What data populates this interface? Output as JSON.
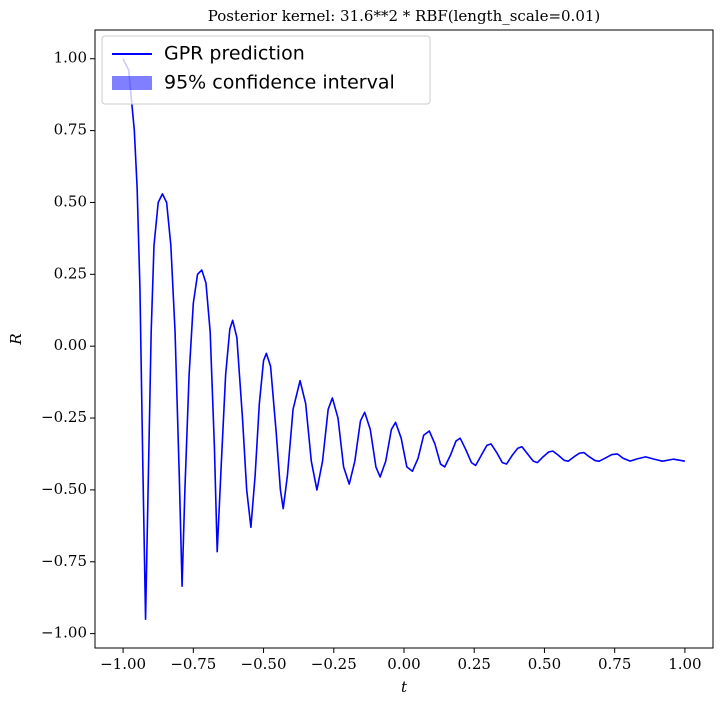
{
  "chart_data": {
    "type": "line",
    "title": "Posterior kernel: 31.6**2 * RBF(length_scale=0.01)",
    "xlabel": "t",
    "ylabel": "R",
    "xlim": [
      -1.1,
      1.1
    ],
    "ylim": [
      -1.05,
      1.1
    ],
    "xticks": [
      {
        "value": -1,
        "label": "−1.00"
      },
      {
        "value": -0.75,
        "label": "−0.75"
      },
      {
        "value": -0.5,
        "label": "−0.50"
      },
      {
        "value": -0.25,
        "label": "−0.25"
      },
      {
        "value": 0,
        "label": "0.00"
      },
      {
        "value": 0.25,
        "label": "0.25"
      },
      {
        "value": 0.5,
        "label": "0.50"
      },
      {
        "value": 0.75,
        "label": "0.75"
      },
      {
        "value": 1,
        "label": "1.00"
      }
    ],
    "yticks": [
      {
        "value": -1,
        "label": "−1.00"
      },
      {
        "value": -0.75,
        "label": "−0.75"
      },
      {
        "value": -0.5,
        "label": "−0.50"
      },
      {
        "value": -0.25,
        "label": "−0.25"
      },
      {
        "value": 0,
        "label": "0.00"
      },
      {
        "value": 0.25,
        "label": "0.25"
      },
      {
        "value": 0.5,
        "label": "0.50"
      },
      {
        "value": 0.75,
        "label": "0.75"
      },
      {
        "value": 1,
        "label": "1.00"
      }
    ],
    "legend": "upper left",
    "band": {
      "name": "95% confidence interval",
      "color": "#0000ff",
      "alpha": 0.5
    },
    "x": [
      -1.0,
      -0.98,
      -0.96,
      -0.95,
      -0.94,
      -0.93,
      -0.92,
      -0.91,
      -0.9,
      -0.89,
      -0.875,
      -0.86,
      -0.845,
      -0.83,
      -0.815,
      -0.8,
      -0.79,
      -0.78,
      -0.765,
      -0.75,
      -0.735,
      -0.72,
      -0.705,
      -0.69,
      -0.675,
      -0.665,
      -0.65,
      -0.635,
      -0.62,
      -0.61,
      -0.595,
      -0.575,
      -0.56,
      -0.545,
      -0.53,
      -0.515,
      -0.5,
      -0.49,
      -0.475,
      -0.455,
      -0.44,
      -0.43,
      -0.415,
      -0.395,
      -0.37,
      -0.35,
      -0.33,
      -0.31,
      -0.29,
      -0.27,
      -0.255,
      -0.235,
      -0.215,
      -0.195,
      -0.175,
      -0.155,
      -0.14,
      -0.12,
      -0.1,
      -0.085,
      -0.065,
      -0.045,
      -0.03,
      -0.01,
      0.01,
      0.03,
      0.05,
      0.07,
      0.09,
      0.11,
      0.13,
      0.145,
      0.165,
      0.185,
      0.2,
      0.22,
      0.24,
      0.255,
      0.275,
      0.295,
      0.31,
      0.33,
      0.35,
      0.365,
      0.385,
      0.405,
      0.42,
      0.44,
      0.46,
      0.475,
      0.495,
      0.515,
      0.53,
      0.55,
      0.57,
      0.585,
      0.605,
      0.625,
      0.64,
      0.66,
      0.68,
      0.695,
      0.715,
      0.74,
      0.76,
      0.78,
      0.805,
      0.83,
      0.86,
      0.89,
      0.92,
      0.96,
      1.0
    ],
    "series": [
      {
        "name": "GPR prediction",
        "color": "#0000ff",
        "values": [
          1.0,
          0.96,
          0.75,
          0.55,
          0.2,
          -0.4,
          -0.95,
          -0.45,
          0.05,
          0.35,
          0.5,
          0.53,
          0.5,
          0.35,
          0.05,
          -0.45,
          -0.835,
          -0.5,
          -0.1,
          0.15,
          0.25,
          0.265,
          0.22,
          0.05,
          -0.35,
          -0.715,
          -0.4,
          -0.1,
          0.06,
          0.09,
          0.03,
          -0.25,
          -0.5,
          -0.63,
          -0.45,
          -0.2,
          -0.05,
          -0.025,
          -0.07,
          -0.3,
          -0.5,
          -0.565,
          -0.45,
          -0.22,
          -0.12,
          -0.2,
          -0.4,
          -0.5,
          -0.4,
          -0.22,
          -0.18,
          -0.25,
          -0.42,
          -0.48,
          -0.4,
          -0.26,
          -0.23,
          -0.29,
          -0.42,
          -0.455,
          -0.4,
          -0.29,
          -0.265,
          -0.32,
          -0.42,
          -0.435,
          -0.39,
          -0.31,
          -0.295,
          -0.34,
          -0.41,
          -0.42,
          -0.38,
          -0.33,
          -0.32,
          -0.36,
          -0.405,
          -0.415,
          -0.38,
          -0.345,
          -0.34,
          -0.37,
          -0.405,
          -0.41,
          -0.38,
          -0.355,
          -0.35,
          -0.375,
          -0.4,
          -0.405,
          -0.385,
          -0.368,
          -0.365,
          -0.38,
          -0.397,
          -0.4,
          -0.385,
          -0.372,
          -0.37,
          -0.385,
          -0.398,
          -0.4,
          -0.39,
          -0.377,
          -0.375,
          -0.39,
          -0.4,
          -0.392,
          -0.385,
          -0.393,
          -0.4,
          -0.393,
          -0.4
        ]
      }
    ]
  }
}
